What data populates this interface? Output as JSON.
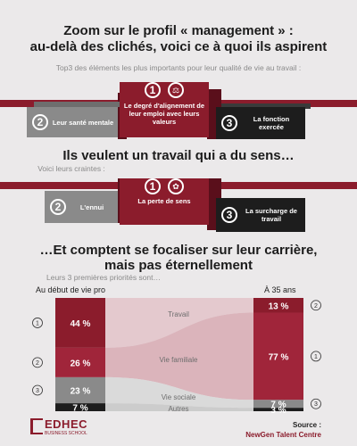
{
  "section1": {
    "title_line1": "Zoom sur le profil « management » :",
    "title_line2": "au-delà des clichés, voici ce à quoi ils aspirent",
    "subtitle": "Top3 des éléments les plus importants pour leur qualité de vie au travail :",
    "podium": [
      {
        "rank": "2",
        "label": "Leur santé mentale"
      },
      {
        "rank": "1",
        "label": "Le degré d'alignement de leur emploi avec leurs valeurs"
      },
      {
        "rank": "3",
        "label": "La fonction exercée"
      }
    ]
  },
  "section2": {
    "title": "Ils veulent un travail qui a du sens…",
    "subtitle": "Voici leurs craintes :",
    "podium": [
      {
        "rank": "2",
        "label": "L'ennui"
      },
      {
        "rank": "1",
        "label": "La perte de sens"
      },
      {
        "rank": "3",
        "label": "La surcharge de travail"
      }
    ]
  },
  "section3": {
    "title_line1": "…Et comptent se focaliser sur leur carrière,",
    "title_line2": "mais pas éternellement",
    "subtitle": "Leurs 3 premières priorités sont…",
    "left_header": "Au début de vie pro",
    "right_header": "À 35 ans"
  },
  "chart_data": {
    "type": "area",
    "categories": [
      "Au début de vie pro",
      "À 35 ans"
    ],
    "series": [
      {
        "name": "Travail",
        "values": [
          44,
          13
        ],
        "left_rank": "1",
        "right_rank": "2",
        "color": "#8b1c2c"
      },
      {
        "name": "Vie familiale",
        "values": [
          26,
          77
        ],
        "left_rank": "2",
        "right_rank": "1",
        "color": "#a0253a"
      },
      {
        "name": "Vie sociale",
        "values": [
          23,
          7
        ],
        "left_rank": "3",
        "right_rank": "3",
        "color": "#8a8a8a"
      },
      {
        "name": "Autres",
        "values": [
          7,
          3
        ],
        "left_rank": "",
        "right_rank": "",
        "color": "#1d1d1d"
      }
    ],
    "left_labels": [
      "44 %",
      "26 %",
      "23 %",
      "7 %"
    ],
    "right_labels": [
      "13 %",
      "77 %",
      "7 %",
      "3 %"
    ]
  },
  "footer": {
    "logo_text": "EDHEC",
    "logo_sub": "BUSINESS SCHOOL",
    "source_label": "Source :",
    "source_name": "NewGen Talent Centre"
  },
  "colors": {
    "accent": "#8b1c2c",
    "grey": "#8a8a8a",
    "black": "#1d1d1d",
    "background": "#ebe9ea"
  }
}
